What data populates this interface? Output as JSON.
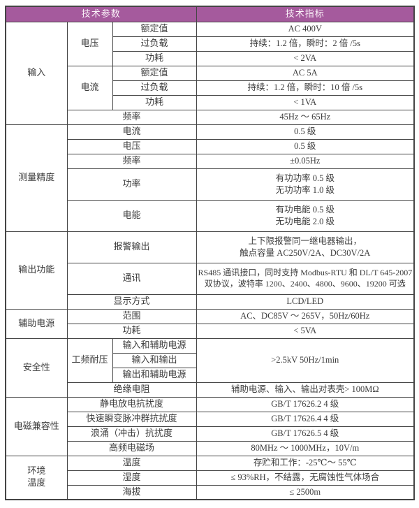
{
  "header": {
    "params": "技术参数",
    "indicators": "技术指标"
  },
  "input": {
    "group": "输入",
    "voltage": {
      "label": "电压",
      "rated_label": "额定值",
      "rated": "AC 400V",
      "overload_label": "过负载",
      "overload": "持续：1.2 倍，瞬时：2 倍 /5s",
      "power_label": "功耗",
      "power": "< 2VA"
    },
    "current": {
      "label": "电流",
      "rated_label": "额定值",
      "rated": "AC 5A",
      "overload_label": "过负载",
      "overload": "持续：1.2 倍，瞬时：10 倍 /5s",
      "power_label": "功耗",
      "power": "< 1VA"
    },
    "frequency_label": "频率",
    "frequency": "45Hz ～ 65Hz"
  },
  "accuracy": {
    "group": "测量精度",
    "current_label": "电流",
    "current": "0.5 级",
    "voltage_label": "电压",
    "voltage": "0.5 级",
    "frequency_label": "频率",
    "frequency": "±0.05Hz",
    "power_label": "功率",
    "power_line1": "有功功率 0.5 级",
    "power_line2": "无功功率 1.0 级",
    "energy_label": "电能",
    "energy_line1": "有功电能 0.5 级",
    "energy_line2": "无功电能 2.0 级"
  },
  "output": {
    "group": "输出功能",
    "alarm_label": "报警输出",
    "alarm_line1": "上下限报警同一继电器输出，",
    "alarm_line2": "触点容量 AC250V/2A、DC30V/2A",
    "comm_label": "通讯",
    "comm_line1": "RS485 通讯接口，同时支持 Modbus-RTU 和 DL/T 645-2007",
    "comm_line2": "双协议，波特率 1200、2400、4800、9600、19200 可选",
    "display_label": "显示方式",
    "display": "LCD/LED"
  },
  "aux_power": {
    "group": "辅助电源",
    "range_label": "范围",
    "range": "AC、DC85V ～ 265V，50Hz/60Hz",
    "power_label": "功耗",
    "power": "< 5VA"
  },
  "safety": {
    "group": "安全性",
    "withstand_label": "工频耐压",
    "withstand_rows": [
      "输入和辅助电源",
      "输入和输出",
      "输出和辅助电源"
    ],
    "withstand_value": ">2.5kV 50Hz/1min",
    "insulation_label": "绝缘电阻",
    "insulation": "辅助电源、输入、输出对表壳> 100MΩ"
  },
  "emc": {
    "group": "电磁兼容性",
    "esd_label": "静电放电抗扰度",
    "esd": "GB/T 17626.2 4 级",
    "eft_label": "快速瞬变脉冲群抗扰度",
    "eft": "GB/T 17626.4 4 级",
    "surge_label": "浪涌（冲击）抗扰度",
    "surge": "GB/T 17626.5 4 级",
    "rf_label": "高频电磁场",
    "rf": "80MHz ～ 1000MHz，10V/m"
  },
  "environment": {
    "group_line1": "环境",
    "group_line2": "温度",
    "temp_label": "温度",
    "temp": "存贮和工作：-25℃～ 55℃",
    "humidity_label": "湿度",
    "humidity": "≤ 93%RH，不结露，无腐蚀性气体场合",
    "altitude_label": "海拔",
    "altitude": "≤ 2500m"
  },
  "colors": {
    "header_bg": "#a55a9d",
    "header_text": "#fbf3f9",
    "border": "#454545",
    "text": "#3c3c3c"
  }
}
